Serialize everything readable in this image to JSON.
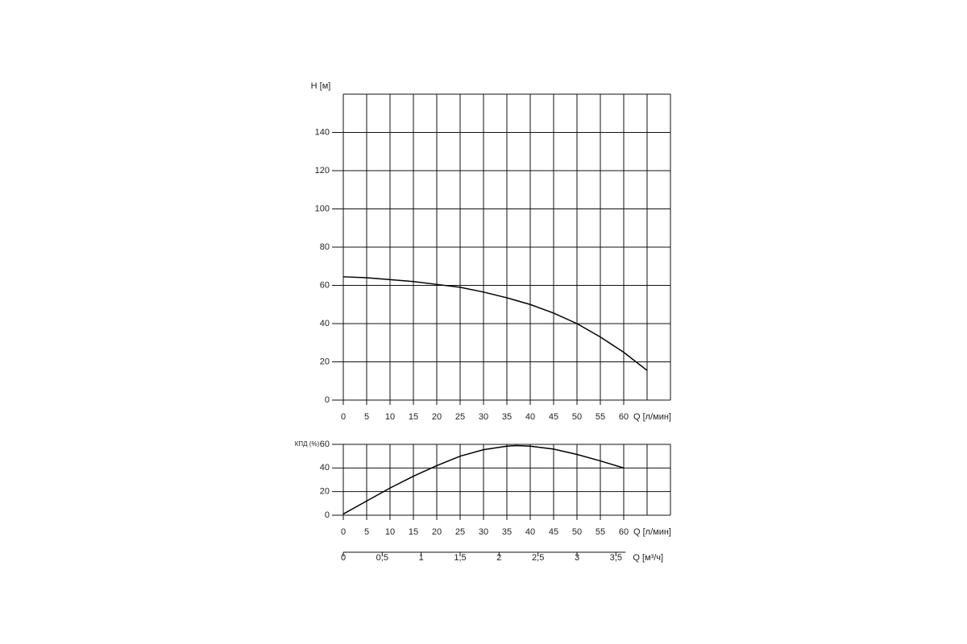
{
  "chart_data": [
    {
      "type": "line",
      "ylabel": "H [м]",
      "xlabel": "Q [л/мин]",
      "x": [
        0,
        5,
        10,
        15,
        20,
        25,
        30,
        35,
        40,
        45,
        50,
        55,
        60,
        65
      ],
      "series": [
        {
          "color": "#000000",
          "values": [
            64.5,
            64,
            63,
            62,
            60.5,
            59,
            56.5,
            53.5,
            50,
            45.5,
            40,
            33,
            25,
            15.5
          ]
        }
      ],
      "xlim": [
        0,
        70
      ],
      "ylim": [
        0,
        160
      ],
      "xticks": [
        0,
        5,
        10,
        15,
        20,
        25,
        30,
        35,
        40,
        45,
        50,
        55,
        60
      ],
      "xgrid": [
        65
      ],
      "yticks": [
        0,
        20,
        40,
        60,
        80,
        100,
        120,
        140
      ],
      "grid": true
    },
    {
      "type": "line",
      "ylabel": "КПД (%)",
      "xlabel": "Q [л/мин]",
      "x": [
        0,
        5,
        10,
        15,
        20,
        25,
        30,
        35,
        37,
        40,
        45,
        50,
        55,
        60
      ],
      "series": [
        {
          "color": "#000000",
          "values": [
            1,
            12,
            23,
            33,
            42,
            50,
            55.5,
            58.5,
            59,
            58.5,
            56,
            51.5,
            46,
            40
          ]
        }
      ],
      "xlim": [
        0,
        70
      ],
      "ylim": [
        0,
        60
      ],
      "xticks": [
        0,
        5,
        10,
        15,
        20,
        25,
        30,
        35,
        40,
        45,
        50,
        55,
        60
      ],
      "xgrid": [
        65
      ],
      "yticks": [
        0,
        20,
        40,
        60
      ],
      "grid": true,
      "x2label": "Q [м³/ч]",
      "x2lim": [
        0,
        4.2
      ],
      "x2ticks": [
        0,
        {
          "value": 0.5,
          "label": "0,5"
        },
        1,
        {
          "value": 1.5,
          "label": "1,5"
        },
        2,
        {
          "value": 2.5,
          "label": "2,5"
        },
        3,
        {
          "value": 3.5,
          "label": "3,5"
        }
      ]
    }
  ]
}
